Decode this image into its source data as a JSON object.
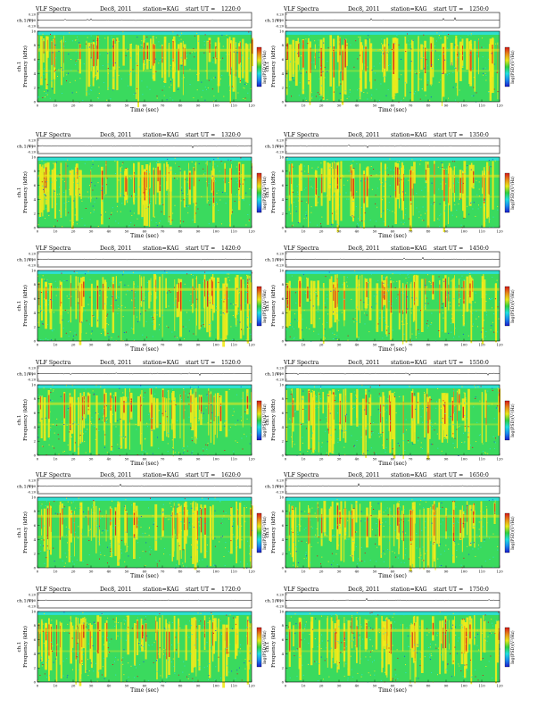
{
  "panel_common": {
    "title_left": "VLF Spectra",
    "date": "Dec8, 2011",
    "station": "station=KAG",
    "start_label": "start  UT =",
    "ch_label": "ch.1(V)",
    "y_label": "Frequency  (kHz)",
    "ch_tag": "ch.1",
    "x_label": "Time  (sec)",
    "cbar_label": "log(PSD)(V²/Hz)",
    "amp_ticks": [
      "0.20",
      "0.00",
      "-0.20"
    ],
    "freq_ticks": [
      "0",
      "2",
      "4",
      "6",
      "8",
      "10"
    ],
    "time_ticks": [
      "0",
      "10",
      "20",
      "30",
      "40",
      "50",
      "60",
      "70",
      "80",
      "90",
      "100",
      "110",
      "120"
    ]
  },
  "colors": {
    "background": "#ffffff",
    "axis": "#000000",
    "spectrogram_base": "#2ee0d0",
    "spectrogram_mid": "#3cd84a",
    "spectrogram_high": "#f2ea1a",
    "spectrogram_peak": "#d81818",
    "cbar_stops": [
      "#1a1acc",
      "#1a88ee",
      "#20e0e0",
      "#30d040",
      "#e8e81a",
      "#e88a1a",
      "#d81818"
    ]
  },
  "chart_data": [
    {
      "type": "heatmap",
      "start_ut": "1220:0",
      "xlim": [
        0,
        120
      ],
      "ylim": [
        0,
        10
      ],
      "xlabel": "Time  (sec)",
      "ylabel": "Frequency  (kHz)"
    },
    {
      "type": "heatmap",
      "start_ut": "1250:0",
      "xlim": [
        0,
        120
      ],
      "ylim": [
        0,
        10
      ],
      "xlabel": "Time  (sec)",
      "ylabel": "Frequency  (kHz)"
    },
    {
      "type": "heatmap",
      "start_ut": "1320:0",
      "xlim": [
        0,
        120
      ],
      "ylim": [
        0,
        10
      ],
      "xlabel": "Time  (sec)",
      "ylabel": "Frequency  (kHz)"
    },
    {
      "type": "heatmap",
      "start_ut": "1350:0",
      "xlim": [
        0,
        120
      ],
      "ylim": [
        0,
        10
      ],
      "xlabel": "Time  (sec)",
      "ylabel": "Frequency  (kHz)"
    },
    {
      "type": "heatmap",
      "start_ut": "1420:0",
      "xlim": [
        0,
        120
      ],
      "ylim": [
        0,
        10
      ],
      "xlabel": "Time  (sec)",
      "ylabel": "Frequency  (kHz)"
    },
    {
      "type": "heatmap",
      "start_ut": "1450:0",
      "xlim": [
        0,
        120
      ],
      "ylim": [
        0,
        10
      ],
      "xlabel": "Time  (sec)",
      "ylabel": "Frequency  (kHz)"
    },
    {
      "type": "heatmap",
      "start_ut": "1520:0",
      "xlim": [
        0,
        120
      ],
      "ylim": [
        0,
        10
      ],
      "xlabel": "Time  (sec)",
      "ylabel": "Frequency  (kHz)"
    },
    {
      "type": "heatmap",
      "start_ut": "1550:0",
      "xlim": [
        0,
        120
      ],
      "ylim": [
        0,
        10
      ],
      "xlabel": "Time  (sec)",
      "ylabel": "Frequency  (kHz)"
    },
    {
      "type": "heatmap",
      "start_ut": "1620:0",
      "xlim": [
        0,
        120
      ],
      "ylim": [
        0,
        10
      ],
      "xlabel": "Time  (sec)",
      "ylabel": "Frequency  (kHz)"
    },
    {
      "type": "heatmap",
      "start_ut": "1650:0",
      "xlim": [
        0,
        120
      ],
      "ylim": [
        0,
        10
      ],
      "xlabel": "Time  (sec)",
      "ylabel": "Frequency  (kHz)"
    },
    {
      "type": "heatmap",
      "start_ut": "1720:0",
      "xlim": [
        0,
        120
      ],
      "ylim": [
        0,
        10
      ],
      "xlabel": "Time  (sec)",
      "ylabel": "Frequency  (kHz)"
    },
    {
      "type": "heatmap",
      "start_ut": "1750:0",
      "xlim": [
        0,
        120
      ],
      "ylim": [
        0,
        10
      ],
      "xlabel": "Time  (sec)",
      "ylabel": "Frequency  (kHz)"
    }
  ]
}
